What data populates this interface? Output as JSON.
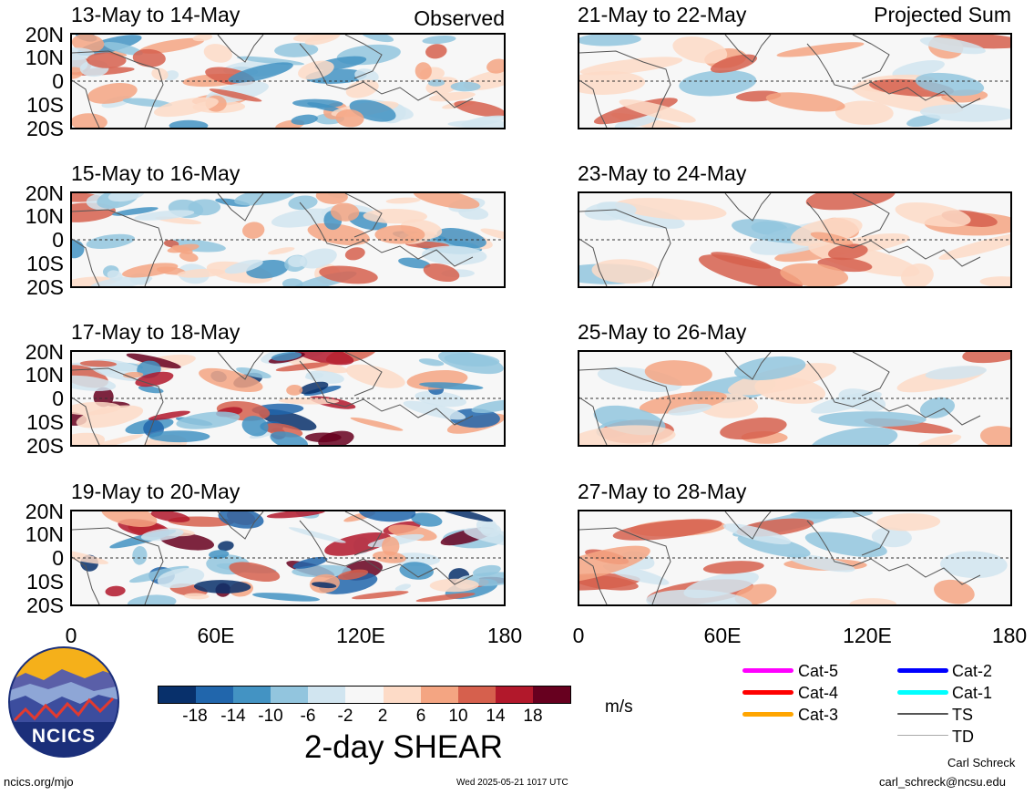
{
  "panels_left": [
    {
      "title": "13-May to 14-May",
      "tag": "Observed"
    },
    {
      "title": "15-May to 16-May",
      "tag": ""
    },
    {
      "title": "17-May to 18-May",
      "tag": ""
    },
    {
      "title": "19-May to 20-May",
      "tag": ""
    }
  ],
  "panels_right": [
    {
      "title": "21-May to 22-May",
      "tag": "Projected Sum"
    },
    {
      "title": "23-May to 24-May",
      "tag": ""
    },
    {
      "title": "25-May to 26-May",
      "tag": ""
    },
    {
      "title": "27-May to 28-May",
      "tag": ""
    }
  ],
  "lat_labels": [
    "20N",
    "10N",
    "0",
    "10S",
    "20S"
  ],
  "lon_labels": [
    "0",
    "60E",
    "120E",
    "180"
  ],
  "colorbar": {
    "colors": [
      "#08306b",
      "#2166ac",
      "#4393c3",
      "#92c5de",
      "#d1e5f0",
      "#f7f7f7",
      "#fddbc7",
      "#f4a582",
      "#d6604d",
      "#b2182b",
      "#67001f"
    ],
    "labels": [
      "-18",
      "-14",
      "-10",
      "-6",
      "-2",
      "2",
      "6",
      "10",
      "14",
      "18"
    ],
    "title": "2-day SHEAR",
    "units": "m/s"
  },
  "legend": [
    {
      "label": "Cat-5",
      "color": "#ff00ff"
    },
    {
      "label": "Cat-4",
      "color": "#ff0000"
    },
    {
      "label": "Cat-3",
      "color": "#ffa500"
    },
    {
      "label": "Cat-2",
      "color": "#0000ff"
    },
    {
      "label": "Cat-1",
      "color": "#00ffff"
    },
    {
      "label": "TS",
      "color": "#555555"
    },
    {
      "label": "TD",
      "color": "#aaaaaa"
    }
  ],
  "logo": {
    "text": "NCICS"
  },
  "footer": {
    "site": "ncics.org/mjo",
    "timestamp": "Wed 2025-05-21 1017 UTC",
    "author": "Carl Schreck",
    "email": "carl_schreck@ncsu.edu"
  }
}
